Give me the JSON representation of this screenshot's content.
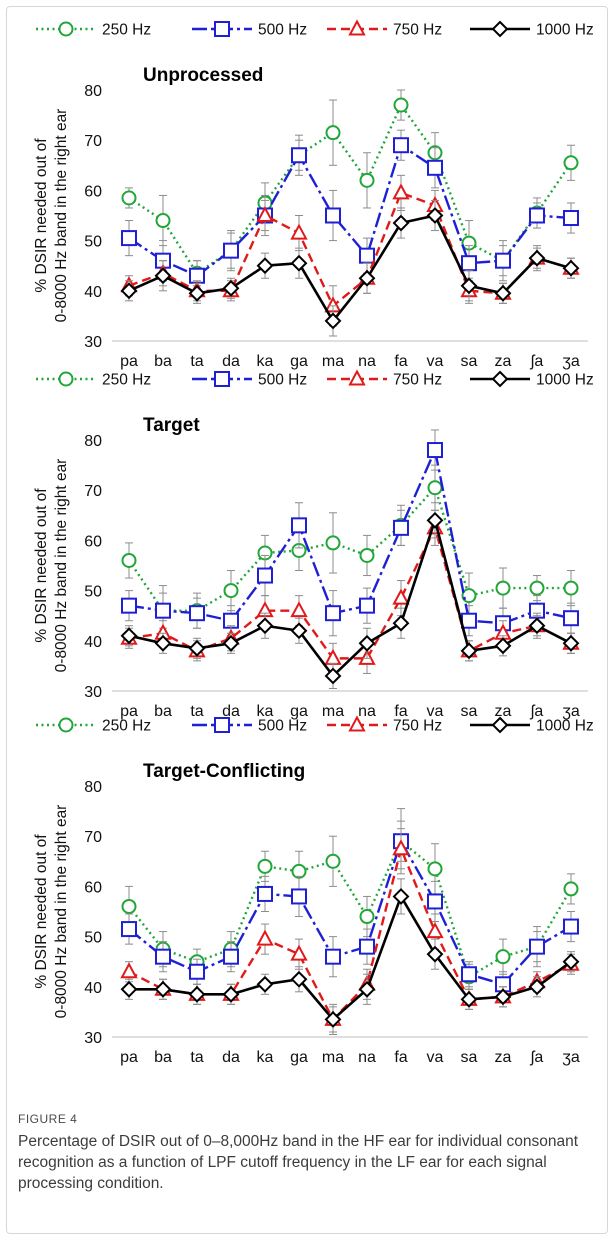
{
  "figure": {
    "label": "FIGURE 4",
    "caption": "Percentage of DSIR out of 0–8,000Hz band in the HF ear for individual consonant recognition as a function of LPF cutoff frequency in the LF ear for each signal processing condition."
  },
  "colors": {
    "s250": "#22a63a",
    "s500": "#1f1fd6",
    "s750": "#e01a1a",
    "s1000": "#000000",
    "error_bar": "#8c8c8c"
  },
  "chart_data": [
    {
      "type": "line",
      "title": "Unprocessed",
      "ylabel": [
        "% DSIR needed out of",
        "0-8000 Hz band in the right ear"
      ],
      "ylim": [
        30,
        80
      ],
      "yticks": [
        30,
        40,
        50,
        60,
        70,
        80
      ],
      "legend_position": "top",
      "grid": false,
      "categories": [
        "pa",
        "ba",
        "ta",
        "da",
        "ka",
        "ga",
        "ma",
        "na",
        "fa",
        "va",
        "sa",
        "za",
        "ʃa",
        "ʒa"
      ],
      "series": [
        {
          "name": "250 Hz",
          "values": [
            58.5,
            54,
            43.5,
            48,
            57.5,
            67,
            71.5,
            62,
            77,
            67.5,
            49.5,
            46,
            55.5,
            65.5
          ],
          "errors": [
            2,
            5,
            2.5,
            4,
            4,
            4,
            6.5,
            5.5,
            3,
            4,
            4.5,
            4,
            3,
            3.5
          ]
        },
        {
          "name": "500 Hz",
          "values": [
            50.5,
            46,
            43,
            48,
            55,
            67,
            55,
            47,
            69,
            64.5,
            45.5,
            46,
            55,
            54.5
          ],
          "errors": [
            3.5,
            4,
            3,
            3.5,
            4,
            3,
            5,
            3.5,
            3,
            4,
            3.5,
            3,
            2.5,
            3
          ]
        },
        {
          "name": "750 Hz",
          "values": [
            41,
            43.5,
            40,
            40,
            55,
            51.5,
            37,
            42.5,
            59.5,
            57,
            40,
            39.5,
            46.5,
            44.5
          ],
          "errors": [
            2,
            2.5,
            2,
            2,
            3,
            3.5,
            4,
            3,
            3.5,
            3,
            2.5,
            2,
            2.5,
            2
          ]
        },
        {
          "name": "1000 Hz",
          "values": [
            40,
            43,
            39.5,
            40.5,
            45,
            45.5,
            34,
            42.5,
            53.5,
            55,
            41,
            39.5,
            46.5,
            44.5
          ],
          "errors": [
            2,
            3,
            2,
            2,
            2.5,
            3,
            3,
            3,
            3,
            3,
            3,
            2,
            2,
            2
          ]
        }
      ]
    },
    {
      "type": "line",
      "title": "Target",
      "ylabel": [
        "% DSIR needed out of",
        "0-8000 Hz band in the right ear"
      ],
      "ylim": [
        30,
        80
      ],
      "yticks": [
        30,
        40,
        50,
        60,
        70,
        80
      ],
      "legend_position": "top",
      "grid": false,
      "categories": [
        "pa",
        "ba",
        "ta",
        "da",
        "ka",
        "ga",
        "ma",
        "na",
        "fa",
        "va",
        "sa",
        "za",
        "ʃa",
        "ʒa"
      ],
      "series": [
        {
          "name": "250 Hz",
          "values": [
            56,
            46,
            46,
            50,
            57.5,
            58,
            59.5,
            57,
            63,
            70.5,
            49,
            50.5,
            50.5,
            50.5
          ],
          "errors": [
            3.5,
            5,
            3.5,
            4,
            3.5,
            4,
            6,
            4,
            4,
            4.5,
            4.5,
            4,
            2.5,
            3.5
          ]
        },
        {
          "name": "500 Hz",
          "values": [
            47,
            46,
            45.5,
            44,
            53,
            63,
            45.5,
            47,
            62.5,
            78,
            44,
            43.5,
            46,
            44.5
          ],
          "errors": [
            3,
            3.5,
            3,
            3,
            4,
            4.5,
            4.5,
            3.5,
            3.5,
            4,
            3,
            3,
            3,
            3
          ]
        },
        {
          "name": "750 Hz",
          "values": [
            40.5,
            41.5,
            38,
            40.5,
            46,
            46,
            36.5,
            36.5,
            48.5,
            62.5,
            38,
            41.5,
            43,
            39.5
          ],
          "errors": [
            2,
            2.5,
            2,
            2.5,
            3,
            3,
            3,
            3,
            3.5,
            3.5,
            2,
            2.5,
            2.5,
            2
          ]
        },
        {
          "name": "1000 Hz",
          "values": [
            41,
            39.5,
            38.5,
            39.5,
            43,
            42,
            33,
            39.5,
            43.5,
            64,
            38,
            39,
            43,
            39.5
          ],
          "errors": [
            2,
            2,
            2,
            2,
            2.5,
            2.5,
            2.5,
            3,
            3,
            3.5,
            2,
            2,
            2,
            2
          ]
        }
      ]
    },
    {
      "type": "line",
      "title": "Target-Conflicting",
      "ylabel": [
        "% DSIR needed out of",
        "0-8000 Hz band in the right ear"
      ],
      "ylim": [
        30,
        80
      ],
      "yticks": [
        30,
        40,
        50,
        60,
        70,
        80
      ],
      "legend_position": "top",
      "grid": false,
      "categories": [
        "pa",
        "ba",
        "ta",
        "da",
        "ka",
        "ga",
        "ma",
        "na",
        "fa",
        "va",
        "sa",
        "za",
        "ʃa",
        "ʒa"
      ],
      "series": [
        {
          "name": "250 Hz",
          "values": [
            56,
            47.5,
            45,
            47.5,
            64,
            63,
            65,
            54,
            69,
            63.5,
            42,
            46,
            48,
            59.5
          ],
          "errors": [
            4,
            3.5,
            2.5,
            3.5,
            3,
            4,
            5,
            4,
            6.5,
            5,
            2.5,
            3.5,
            4,
            3
          ]
        },
        {
          "name": "500 Hz",
          "values": [
            51.5,
            46,
            43,
            46,
            58.5,
            58,
            46,
            48,
            69,
            57,
            42.5,
            40.5,
            48,
            52
          ],
          "errors": [
            3,
            3,
            2.5,
            3,
            3.5,
            4,
            4,
            3.5,
            4,
            4,
            2.5,
            2.5,
            3,
            3
          ]
        },
        {
          "name": "750 Hz",
          "values": [
            43,
            39.5,
            38.5,
            38.5,
            49.5,
            46.5,
            33.5,
            40.5,
            67.5,
            51,
            37.5,
            38,
            41,
            44.5
          ],
          "errors": [
            2,
            2,
            2,
            2,
            3,
            3,
            3,
            3,
            4,
            3.5,
            2,
            2,
            2,
            2
          ]
        },
        {
          "name": "1000 Hz",
          "values": [
            39.5,
            39.5,
            38.5,
            38.5,
            40.5,
            41.5,
            33.5,
            39.5,
            58,
            46.5,
            37.5,
            38,
            40,
            45
          ],
          "errors": [
            2,
            2,
            2,
            2,
            2,
            2.5,
            2.5,
            3,
            3.5,
            3,
            2,
            2,
            2,
            2
          ]
        }
      ]
    }
  ]
}
